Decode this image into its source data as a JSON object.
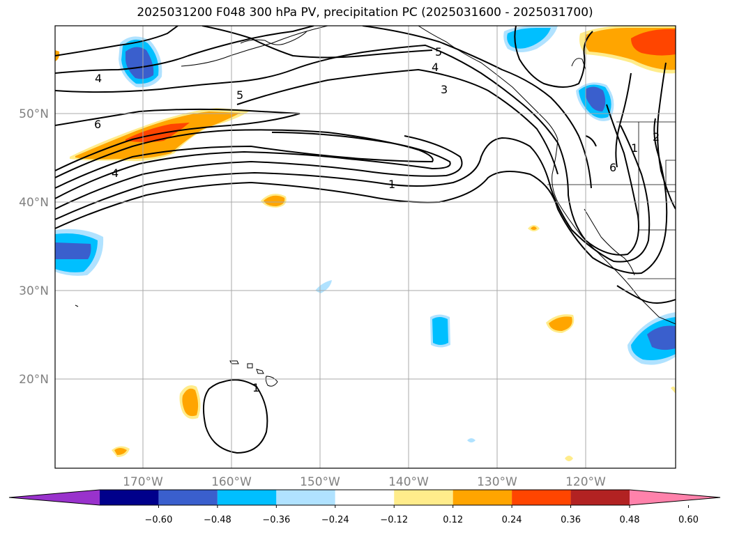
{
  "title": "2025031200 F048 300 hPa PV, precipitation PC (2025031600 - 2025031700)",
  "lat_labels": [
    "50°N",
    "40°N",
    "30°N",
    "20°N"
  ],
  "lon_labels": [
    "170°W",
    "160°W",
    "150°W",
    "140°W",
    "130°W",
    "120°W"
  ],
  "colorbar": {
    "colors": [
      "#9932cc",
      "#00008b",
      "#3a5fcd",
      "#00bfff",
      "#b0e2ff",
      "#ffffff",
      "#ffec8b",
      "#ffa500",
      "#ff4500",
      "#b22222",
      "#ff82ab"
    ],
    "tick_labels": [
      "−0.60",
      "−0.48",
      "−0.36",
      "−0.24",
      "−0.12",
      "0.12",
      "0.24",
      "0.36",
      "0.48",
      "0.60"
    ]
  },
  "contour_labels": [
    "4",
    "5",
    "6",
    "4",
    "1",
    "5",
    "4",
    "3",
    "1",
    "2",
    "6",
    "1"
  ]
}
